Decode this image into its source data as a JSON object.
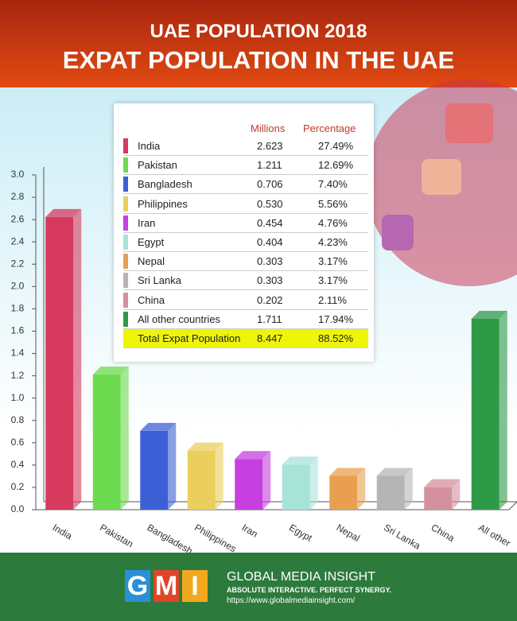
{
  "header": {
    "title": "UAE POPULATION 2018",
    "subtitle": "EXPAT POPULATION IN THE UAE"
  },
  "chart_data": {
    "type": "bar",
    "categories": [
      "India",
      "Pakistan",
      "Bangladesh",
      "Philippines",
      "Iran",
      "Egypt",
      "Nepal",
      "Sri Lanka",
      "China",
      "All other"
    ],
    "values": [
      2.623,
      1.211,
      0.706,
      0.53,
      0.454,
      0.404,
      0.303,
      0.303,
      0.202,
      1.711
    ],
    "colors": [
      "#d63a5e",
      "#6ddb4f",
      "#3d5fd6",
      "#eacf5c",
      "#c63fe0",
      "#a8e3d8",
      "#e8a050",
      "#b5b5b5",
      "#d4909e",
      "#2e9a48"
    ],
    "ylim": [
      0,
      3
    ],
    "yticks": [
      {
        "value": 0,
        "label": "0.0"
      },
      0.2,
      0.4,
      0.6,
      0.8,
      {
        "value": 1,
        "label": "1.0"
      },
      1.2,
      1.4,
      1.6,
      1.8,
      {
        "value": 2,
        "label": "2.0"
      },
      2.2,
      2.4,
      2.6,
      2.8,
      {
        "value": 3,
        "label": "3.0"
      }
    ]
  },
  "table": {
    "columns": [
      "Millions",
      "Percentage"
    ],
    "rows": [
      [
        "India",
        "2.623",
        "27.49%"
      ],
      [
        "Pakistan",
        "1.211",
        "12.69%"
      ],
      [
        "Bangladesh",
        "0.706",
        "7.40%"
      ],
      [
        "Philippines",
        "0.530",
        "5.56%"
      ],
      [
        "Iran",
        "0.454",
        "4.76%"
      ],
      [
        "Egypt",
        "0.404",
        "4.23%"
      ],
      [
        "Nepal",
        "0.303",
        "3.17%"
      ],
      [
        "Sri Lanka",
        "0.303",
        "3.17%"
      ],
      [
        "China",
        "0.202",
        "2.11%"
      ],
      [
        "All other countries",
        "1.711",
        "17.94%"
      ]
    ],
    "total": [
      "Total Expat Population",
      "8.447",
      "88.52%"
    ]
  },
  "footer": {
    "logo": [
      "G",
      "M",
      "I"
    ],
    "brand": "GLOBAL MEDIA INSIGHT",
    "tagline": "ABSOLUTE INTERACTIVE. PERFECT SYNERGY.",
    "url": "https://www.globalmediainsight.com/"
  }
}
